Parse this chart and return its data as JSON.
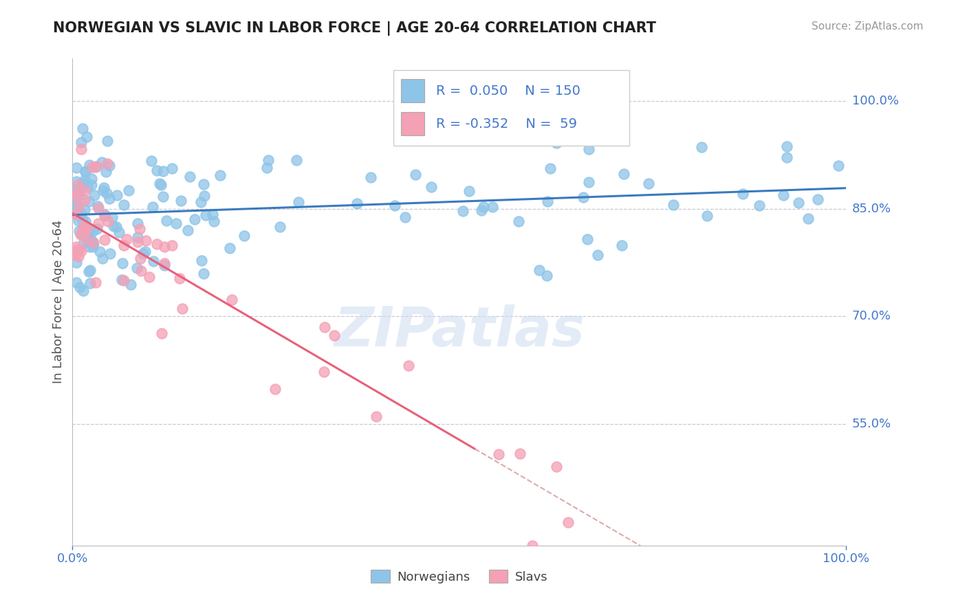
{
  "title": "NORWEGIAN VS SLAVIC IN LABOR FORCE | AGE 20-64 CORRELATION CHART",
  "source_text": "Source: ZipAtlas.com",
  "ylabel": "In Labor Force | Age 20-64",
  "y_tick_labels": [
    "55.0%",
    "70.0%",
    "85.0%",
    "100.0%"
  ],
  "y_tick_values": [
    0.55,
    0.7,
    0.85,
    1.0
  ],
  "xlim": [
    0.0,
    1.0
  ],
  "ylim": [
    0.38,
    1.06
  ],
  "norwegian_R": 0.05,
  "norwegian_N": 150,
  "slavic_R": -0.352,
  "slavic_N": 59,
  "norwegian_color": "#8ec4e8",
  "slavic_color": "#f4a0b5",
  "norwegian_line_color": "#3a7abf",
  "slavic_line_color": "#e8607a",
  "dashed_line_color": "#ddaaaa",
  "grid_color": "#bbbbcc",
  "background_color": "#ffffff",
  "title_color": "#222222",
  "label_color": "#4477cc",
  "watermark": "ZIPatlas",
  "legend_label1": "Norwegians",
  "legend_label2": "Slavs"
}
